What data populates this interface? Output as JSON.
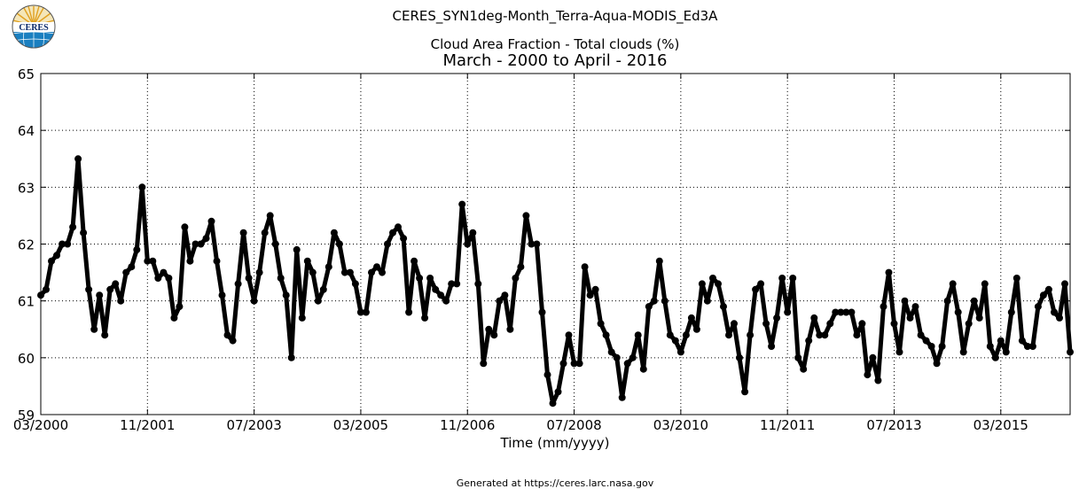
{
  "header": {
    "suptitle": "CERES_SYN1deg-Month_Terra-Aqua-MODIS_Ed3A",
    "subtitle": "Cloud Area Fraction - Total clouds (%)",
    "title": "March - 2000 to April - 2016"
  },
  "logo": {
    "text": "CERES"
  },
  "footer": "Generated at https://ceres.larc.nasa.gov",
  "chart_data": {
    "type": "line",
    "title": "March - 2000 to April - 2016",
    "xlabel": "Time (mm/yyyy)",
    "ylabel": "",
    "ylim": [
      59,
      65
    ],
    "grid": true,
    "line_color": "#000000",
    "marker": "circle",
    "yticks": [
      59,
      60,
      61,
      62,
      63,
      64,
      65
    ],
    "xticks": [
      "03/2000",
      "11/2001",
      "07/2003",
      "03/2005",
      "11/2006",
      "07/2008",
      "03/2010",
      "11/2011",
      "07/2013",
      "03/2015"
    ],
    "x_start": "03/2000",
    "x_end": "04/2016",
    "series": [
      {
        "values": [
          61.1,
          61.2,
          61.7,
          61.8,
          62.0,
          62.0,
          62.3,
          63.5,
          62.2,
          61.2,
          60.5,
          61.1,
          60.4,
          61.2,
          61.3,
          61.0,
          61.5,
          61.6,
          61.9,
          63.0,
          61.7,
          61.7,
          61.4,
          61.5,
          61.4,
          60.7,
          60.9,
          62.3,
          61.7,
          62.0,
          62.0,
          62.1,
          62.4,
          61.7,
          61.1,
          60.4,
          60.3,
          61.3,
          62.2,
          61.4,
          61.0,
          61.5,
          62.2,
          62.5,
          62.0,
          61.4,
          61.1,
          60.0,
          61.9,
          60.7,
          61.7,
          61.5,
          61.0,
          61.2,
          61.6,
          62.2,
          62.0,
          61.5,
          61.5,
          61.3,
          60.8,
          60.8,
          61.5,
          61.6,
          61.5,
          62.0,
          62.2,
          62.3,
          62.1,
          60.8,
          61.7,
          61.4,
          60.7,
          61.4,
          61.2,
          61.1,
          61.0,
          61.3,
          61.3,
          62.7,
          62.0,
          62.2,
          61.3,
          59.9,
          60.5,
          60.4,
          61.0,
          61.1,
          60.5,
          61.4,
          61.6,
          62.5,
          62.0,
          62.0,
          60.8,
          59.7,
          59.2,
          59.4,
          59.9,
          60.4,
          59.9,
          59.9,
          61.6,
          61.1,
          61.2,
          60.6,
          60.4,
          60.1,
          60.0,
          59.3,
          59.9,
          60.0,
          60.4,
          59.8,
          60.9,
          61.0,
          61.7,
          61.0,
          60.4,
          60.3,
          60.1,
          60.4,
          60.7,
          60.5,
          61.3,
          61.0,
          61.4,
          61.3,
          60.9,
          60.4,
          60.6,
          60.0,
          59.4,
          60.4,
          61.2,
          61.3,
          60.6,
          60.2,
          60.7,
          61.4,
          60.8,
          61.4,
          60.0,
          59.8,
          60.3,
          60.7,
          60.4,
          60.4,
          60.6,
          60.8,
          60.8,
          60.8,
          60.8,
          60.4,
          60.6,
          59.7,
          60.0,
          59.6,
          60.9,
          61.5,
          60.6,
          60.1,
          61.0,
          60.7,
          60.9,
          60.4,
          60.3,
          60.2,
          59.9,
          60.2,
          61.0,
          61.3,
          60.8,
          60.1,
          60.6,
          61.0,
          60.7,
          61.3,
          60.2,
          60.0,
          60.3,
          60.1,
          60.8,
          61.4,
          60.3,
          60.2,
          60.2,
          60.9,
          61.1,
          61.2,
          60.8,
          60.7,
          61.3,
          60.1
        ]
      }
    ]
  }
}
